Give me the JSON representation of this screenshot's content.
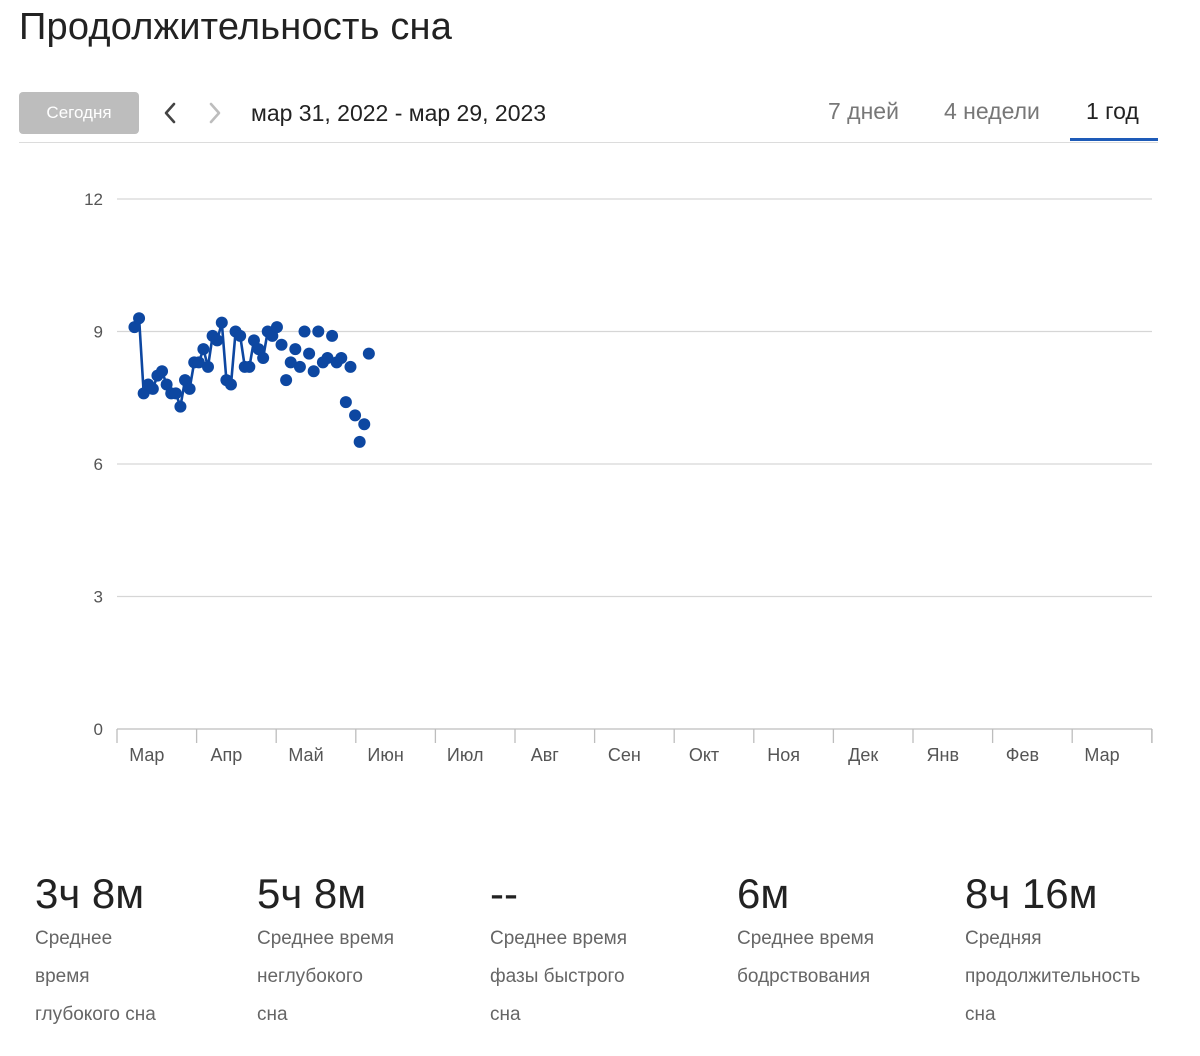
{
  "page": {
    "title": "Продолжительность сна"
  },
  "toolbar": {
    "today_label": "Сегодня",
    "date_range": "мар 31, 2022 - мар 29, 2023",
    "tabs": [
      "7 дней",
      "4 недели",
      "1 год"
    ],
    "active_tab": "1 год"
  },
  "colors": {
    "accent": "#1e5bb8",
    "series": "#0d47a1",
    "grid": "#d6d6d6",
    "today_bg": "#bdbdbd"
  },
  "chart_data": {
    "type": "line",
    "ylim": [
      0,
      12
    ],
    "yticks": [
      0,
      3,
      6,
      9,
      12
    ],
    "y_tick_labels": [
      "0",
      "3",
      "6",
      "9",
      "12"
    ],
    "months": [
      "Мар",
      "Апр",
      "Май",
      "Июн",
      "Июл",
      "Авг",
      "Сен",
      "Окт",
      "Ноя",
      "Дек",
      "Янв",
      "Фев",
      "Мар"
    ],
    "grid": true,
    "legend": "none",
    "x_unit": "weeks from first month tick",
    "series": [
      {
        "x": [
          0.95,
          1.2,
          1.45,
          1.7,
          1.95,
          2.2,
          2.45,
          2.7,
          2.95,
          3.2,
          3.45,
          3.7,
          3.95,
          4.2,
          4.45,
          4.7,
          4.95,
          5.2,
          5.45,
          5.7,
          5.95,
          6.2,
          6.45,
          6.7,
          6.95,
          7.2,
          7.45,
          7.7,
          7.95,
          8.2,
          8.45,
          8.7,
          8.95,
          9.2,
          9.45,
          9.7,
          9.95,
          10.2,
          10.45,
          10.7,
          10.95,
          11.2,
          11.45,
          11.7,
          11.95,
          12.2,
          12.45,
          12.7,
          12.95,
          13.2,
          13.45,
          13.7
        ],
        "y": [
          9.1,
          9.3,
          7.6,
          7.8,
          7.7,
          8.0,
          8.1,
          7.8,
          7.6,
          7.6,
          7.3,
          7.9,
          7.7,
          8.3,
          8.3,
          8.6,
          8.2,
          8.9,
          8.8,
          9.2,
          7.9,
          7.8,
          9.0,
          8.9,
          8.2,
          8.2,
          8.8,
          8.6,
          8.4,
          9.0,
          8.9,
          9.1,
          8.7,
          7.9,
          8.3,
          8.6,
          8.2,
          9.0,
          8.5,
          8.1,
          9.0,
          8.3,
          8.4,
          8.9,
          8.3,
          8.4,
          7.4,
          8.2,
          7.1,
          6.5,
          6.9,
          8.5
        ],
        "connected_count": 32
      }
    ]
  },
  "stats": [
    {
      "value": "3ч 8м",
      "label_lines": [
        "Среднее",
        "время",
        "глубокого сна"
      ]
    },
    {
      "value": "5ч 8м",
      "label_lines": [
        "Среднее время",
        "неглубокого",
        "сна"
      ]
    },
    {
      "value": "--",
      "label_lines": [
        "Среднее время",
        "фазы быстрого",
        "сна"
      ]
    },
    {
      "value": "6м",
      "label_lines": [
        "Среднее время",
        "бодрствования"
      ]
    },
    {
      "value": "8ч 16м",
      "label_lines": [
        "Средняя",
        "продолжительность",
        "сна"
      ]
    }
  ]
}
